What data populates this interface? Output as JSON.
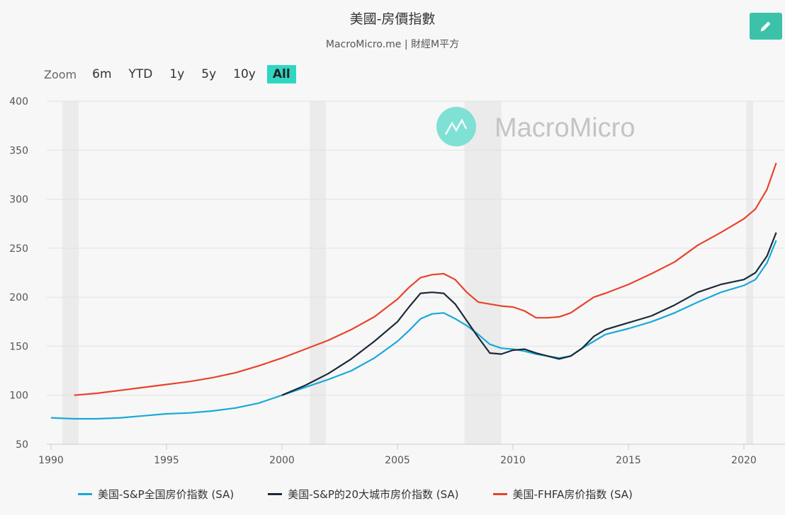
{
  "header": {
    "title": "美國-房價指數",
    "subtitle": "MacroMicro.me | 財經M平方"
  },
  "toolbar": {
    "edit_icon": "pencil-icon",
    "zoom_label": "Zoom",
    "zoom_options": [
      "6m",
      "YTD",
      "1y",
      "5y",
      "10y",
      "All"
    ],
    "zoom_selected": "All"
  },
  "watermark": {
    "text": "MacroMicro",
    "logo_color": "#7fe0d4"
  },
  "colors": {
    "sp_national": "#18a9d8",
    "sp_20city": "#1b2a3a",
    "fhfa": "#e8432a",
    "recession_band": "#ebebeb",
    "accent": "#2fd6c1"
  },
  "legend": [
    {
      "label": "美国-S&P全国房价指数 (SA)",
      "color": "#18a9d8"
    },
    {
      "label": "美国-S&P的20大城市房价指数 (SA)",
      "color": "#1b2a3a"
    },
    {
      "label": "美国-FHFA房价指数 (SA)",
      "color": "#e8432a"
    }
  ],
  "chart_data": {
    "type": "line",
    "title": "美國-房價指數",
    "subtitle": "MacroMicro.me | 財經M平方",
    "xlabel": "",
    "ylabel": "",
    "ylim": [
      50,
      400
    ],
    "xlim": [
      1990,
      2021.5
    ],
    "yticks": [
      50,
      100,
      150,
      200,
      250,
      300,
      350,
      400
    ],
    "xticks": [
      1990,
      1995,
      2000,
      2005,
      2010,
      2015,
      2020
    ],
    "grid": true,
    "legend_position": "bottom",
    "recession_bands": [
      [
        1990.5,
        1991.2
      ],
      [
        2001.2,
        2001.9
      ],
      [
        2007.9,
        2009.5
      ],
      [
        2020.1,
        2020.4
      ]
    ],
    "series": [
      {
        "name": "美国-S&P全国房价指数 (SA)",
        "color": "#18a9d8",
        "x": [
          1990,
          1991,
          1992,
          1993,
          1994,
          1995,
          1996,
          1997,
          1998,
          1999,
          2000,
          2001,
          2002,
          2003,
          2004,
          2005,
          2005.5,
          2006,
          2006.5,
          2007,
          2007.5,
          2008,
          2008.5,
          2009,
          2009.5,
          2010,
          2010.5,
          2011,
          2011.5,
          2012,
          2012.5,
          2013,
          2013.5,
          2014,
          2015,
          2016,
          2017,
          2018,
          2019,
          2020,
          2020.5,
          2021,
          2021.4
        ],
        "values": [
          77,
          76,
          76,
          77,
          79,
          81,
          82,
          84,
          87,
          92,
          100,
          108,
          116,
          125,
          138,
          155,
          166,
          178,
          183,
          184,
          178,
          171,
          162,
          152,
          148,
          147,
          145,
          142,
          140,
          138,
          140,
          148,
          155,
          162,
          168,
          175,
          184,
          195,
          205,
          212,
          218,
          235,
          258
        ]
      },
      {
        "name": "美国-S&P的20大城市房价指数 (SA)",
        "color": "#1b2a3a",
        "x": [
          2000,
          2001,
          2002,
          2003,
          2004,
          2005,
          2005.5,
          2006,
          2006.5,
          2007,
          2007.5,
          2008,
          2008.5,
          2009,
          2009.5,
          2010,
          2010.5,
          2011,
          2011.5,
          2012,
          2012.5,
          2013,
          2013.5,
          2014,
          2015,
          2016,
          2017,
          2018,
          2019,
          2020,
          2020.5,
          2021,
          2021.4
        ],
        "values": [
          100,
          110,
          122,
          137,
          155,
          175,
          190,
          204,
          205,
          204,
          193,
          176,
          159,
          143,
          142,
          146,
          147,
          143,
          140,
          137,
          140,
          148,
          160,
          167,
          174,
          181,
          192,
          205,
          213,
          218,
          225,
          242,
          266
        ]
      },
      {
        "name": "美国-FHFA房价指数 (SA)",
        "color": "#e8432a",
        "x": [
          1991,
          1992,
          1993,
          1994,
          1995,
          1996,
          1997,
          1998,
          1999,
          2000,
          2001,
          2002,
          2003,
          2004,
          2005,
          2005.5,
          2006,
          2006.5,
          2007,
          2007.5,
          2008,
          2008.5,
          2009,
          2009.5,
          2010,
          2010.5,
          2011,
          2011.5,
          2012,
          2012.5,
          2013,
          2013.5,
          2014,
          2015,
          2016,
          2017,
          2018,
          2019,
          2020,
          2020.5,
          2021,
          2021.4
        ],
        "values": [
          100,
          102,
          105,
          108,
          111,
          114,
          118,
          123,
          130,
          138,
          147,
          156,
          167,
          180,
          198,
          210,
          220,
          223,
          224,
          218,
          205,
          195,
          193,
          191,
          190,
          186,
          179,
          179,
          180,
          184,
          192,
          200,
          204,
          213,
          224,
          236,
          253,
          266,
          280,
          290,
          310,
          337
        ]
      }
    ]
  }
}
